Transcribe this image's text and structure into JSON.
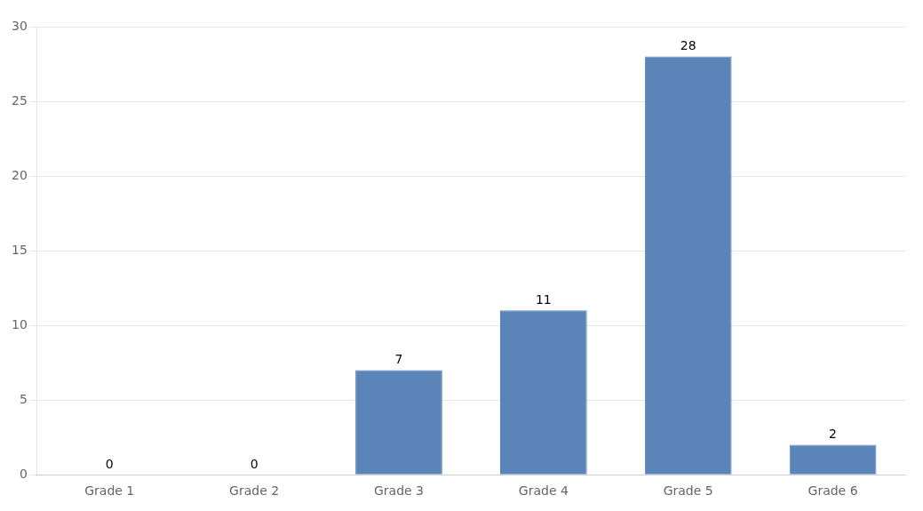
{
  "chart_data": {
    "type": "bar",
    "categories": [
      "Grade 1",
      "Grade 2",
      "Grade 3",
      "Grade 4",
      "Grade 5",
      "Grade 6"
    ],
    "values": [
      0,
      0,
      7,
      11,
      28,
      2
    ],
    "color": "#5b84b8",
    "ylim": [
      0,
      30
    ],
    "yticks": [
      0,
      5,
      10,
      15,
      20,
      25,
      30
    ],
    "grid": true,
    "data_labels": true
  }
}
